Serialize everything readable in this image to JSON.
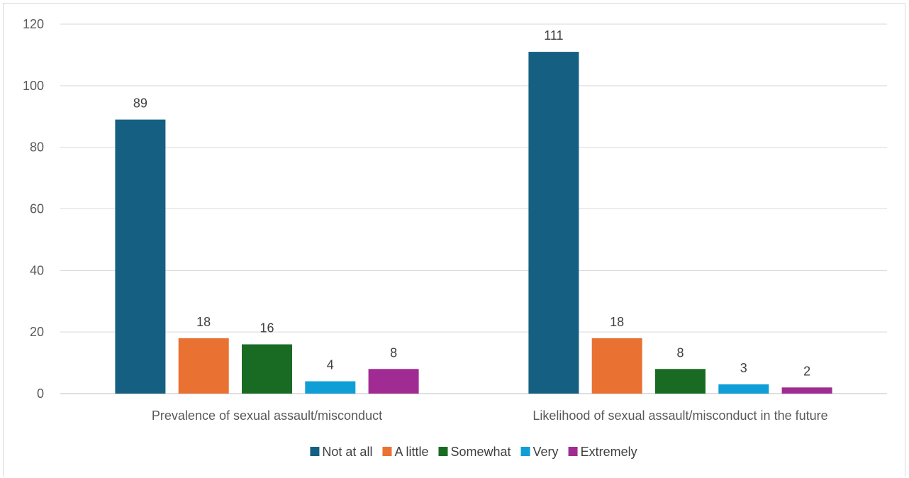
{
  "chart_data": {
    "type": "bar",
    "categories": [
      "Prevalence of sexual assault/misconduct",
      "Likelihood of sexual assault/misconduct in the future"
    ],
    "series": [
      {
        "name": "Not at all",
        "color": "#156082",
        "values": [
          89,
          111
        ]
      },
      {
        "name": "A little",
        "color": "#E97132",
        "values": [
          18,
          18
        ]
      },
      {
        "name": "Somewhat",
        "color": "#196B24",
        "values": [
          16,
          8
        ]
      },
      {
        "name": "Very",
        "color": "#0F9ED5",
        "values": [
          4,
          3
        ]
      },
      {
        "name": "Extremely",
        "color": "#A02B93",
        "values": [
          8,
          2
        ]
      }
    ],
    "ylim": [
      0,
      120
    ],
    "yticks": [
      0,
      20,
      40,
      60,
      80,
      100,
      120
    ],
    "title": "",
    "xlabel": "",
    "ylabel": "",
    "grid": true,
    "legend_position": "bottom",
    "data_labels": true
  }
}
